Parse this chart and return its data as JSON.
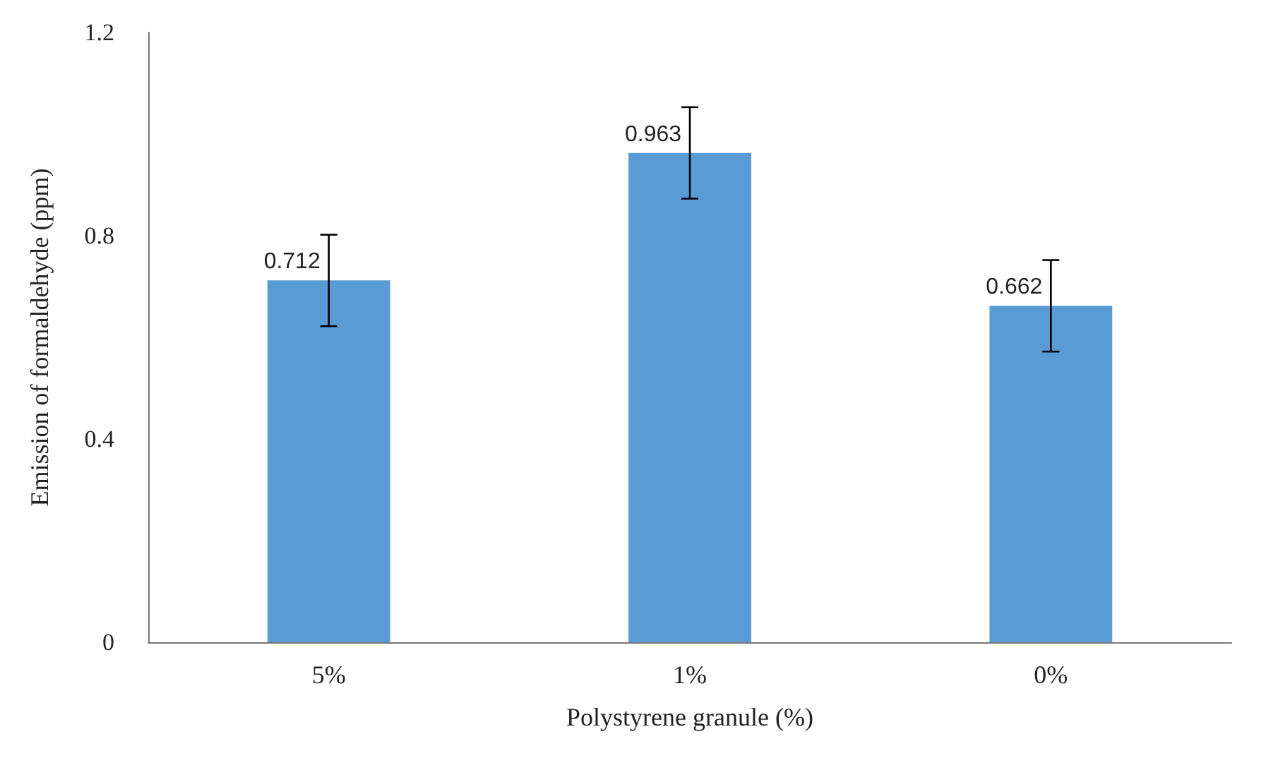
{
  "chart_data": {
    "type": "bar",
    "xlabel": "Polystyrene granule (%)",
    "ylabel": "Emission of formaldehyde (ppm)",
    "categories": [
      "5%",
      "1%",
      "0%"
    ],
    "values": [
      0.712,
      0.963,
      0.662
    ],
    "errors": [
      0.09,
      0.09,
      0.09
    ],
    "color": "#5b9bd5",
    "ylim": [
      0,
      1.2
    ],
    "yticks": [
      0,
      0.4,
      0.8,
      1.2
    ],
    "grid": false,
    "data_labels": true
  }
}
